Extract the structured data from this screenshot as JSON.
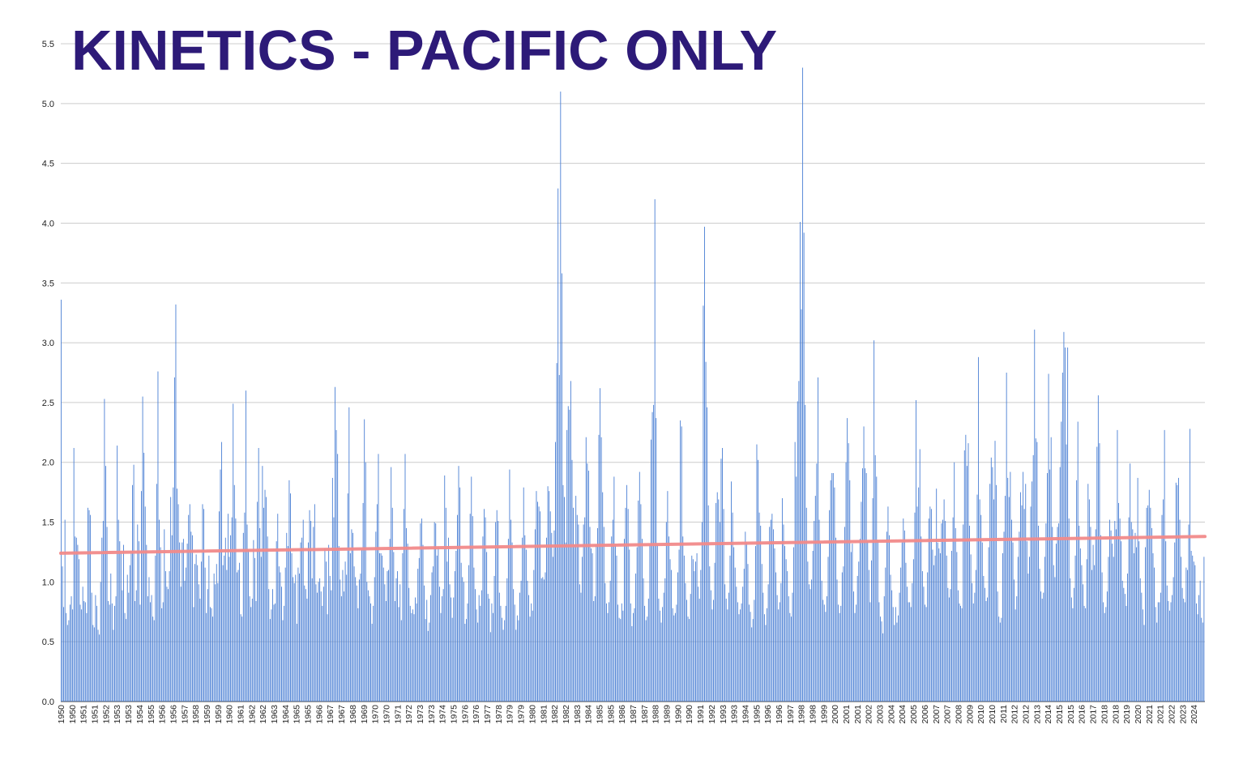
{
  "chart_data": {
    "type": "bar",
    "title": "KINETICS - PACIFIC ONLY",
    "xlabel": "",
    "ylabel": "",
    "ylim": [
      0,
      5.5
    ],
    "yticks": [
      "0.0",
      "0.5",
      "1.0",
      "1.5",
      "2.0",
      "2.5",
      "3.0",
      "3.5",
      "4.0",
      "4.5",
      "5.0",
      "5.5"
    ],
    "x_tick_labels": [
      "1950",
      "1950",
      "1951",
      "1951",
      "1952",
      "1953",
      "1953",
      "1954",
      "1955",
      "1956",
      "1956",
      "1957",
      "1958",
      "1959",
      "1959",
      "1960",
      "1961",
      "1962",
      "1962",
      "1963",
      "1964",
      "1965",
      "1965",
      "1966",
      "1967",
      "1967",
      "1968",
      "1969",
      "1970",
      "1970",
      "1971",
      "1972",
      "1973",
      "1973",
      "1974",
      "1975",
      "1976",
      "1976",
      "1977",
      "1978",
      "1979",
      "1979",
      "1980",
      "1981",
      "1982",
      "1982",
      "1983",
      "1984",
      "1985",
      "1985",
      "1986",
      "1987",
      "1987",
      "1988",
      "1989",
      "1990",
      "1990",
      "1991",
      "1992",
      "1993",
      "1993",
      "1994",
      "1995",
      "1996",
      "1996",
      "1997",
      "1998",
      "1998",
      "1999",
      "2000",
      "2001",
      "2001",
      "2002",
      "2003",
      "2004",
      "2004",
      "2005",
      "2006",
      "2007",
      "2007",
      "2008",
      "2009",
      "2010",
      "2010",
      "2011",
      "2012",
      "2012",
      "2013",
      "2014",
      "2015",
      "2015",
      "2016",
      "2017",
      "2018",
      "2018",
      "2019",
      "2020",
      "2021",
      "2021",
      "2022",
      "2023",
      "2024"
    ],
    "x_start": "1950-01",
    "x_end": "2024-09",
    "series": [
      {
        "color": "#4a7fd4",
        "values": [
          3.36,
          1.13,
          0.79,
          1.52,
          0.74,
          0.64,
          0.68,
          0.81,
          0.88,
          0.77,
          2.12,
          1.38,
          1.37,
          1.31,
          1.19,
          0.81,
          0.77,
          0.96,
          0.84,
          0.83,
          0.74,
          1.62,
          1.6,
          1.56,
          0.91,
          0.64,
          0.62,
          0.89,
          0.8,
          0.6,
          0.56,
          1.0,
          1.37,
          1.51,
          2.53,
          1.97,
          1.46,
          0.84,
          0.81,
          1.07,
          0.82,
          0.6,
          0.8,
          0.88,
          2.14,
          1.52,
          1.34,
          1.24,
          0.93,
          1.31,
          0.74,
          0.69,
          1.06,
          0.91,
          1.14,
          1.26,
          1.81,
          1.98,
          0.84,
          0.93,
          1.48,
          1.34,
          0.81,
          1.76,
          2.55,
          2.08,
          1.63,
          1.31,
          0.88,
          1.04,
          0.83,
          0.89,
          0.71,
          0.68,
          1.22,
          1.82,
          2.76,
          1.52,
          1.29,
          0.78,
          0.83,
          1.44,
          1.09,
          0.96,
          0.94,
          1.09,
          1.71,
          1.39,
          1.79,
          2.71,
          3.32,
          1.78,
          1.65,
          1.33,
          0.96,
          1.33,
          1.36,
          1.01,
          1.12,
          1.32,
          1.56,
          1.65,
          1.42,
          1.39,
          0.79,
          1.15,
          1.23,
          1.14,
          0.98,
          0.86,
          1.17,
          1.65,
          1.61,
          1.12,
          0.74,
          0.94,
          1.22,
          0.79,
          0.78,
          0.71,
          1.07,
          0.98,
          1.15,
          0.99,
          1.59,
          1.94,
          2.17,
          1.14,
          1.22,
          1.37,
          1.1,
          1.57,
          1.21,
          1.39,
          1.54,
          2.49,
          1.81,
          1.53,
          1.08,
          1.1,
          1.16,
          0.73,
          0.71,
          1.41,
          1.58,
          2.6,
          1.48,
          1.27,
          0.88,
          0.79,
          0.86,
          1.35,
          1.2,
          0.84,
          1.67,
          2.12,
          1.45,
          1.21,
          1.97,
          1.62,
          1.77,
          1.71,
          1.38,
          0.94,
          0.69,
          0.77,
          0.94,
          0.81,
          0.82,
          1.34,
          1.57,
          1.13,
          1.08,
          0.96,
          0.68,
          0.8,
          1.12,
          1.41,
          1.3,
          1.85,
          1.74,
          1.24,
          1.04,
          0.99,
          1.06,
          0.65,
          1.12,
          1.07,
          1.33,
          1.37,
          1.52,
          0.97,
          0.94,
          0.86,
          1.33,
          1.6,
          1.51,
          1.03,
          1.46,
          1.65,
          0.98,
          0.91,
          1.0,
          1.03,
          0.92,
          0.8,
          0.96,
          1.28,
          1.17,
          0.73,
          1.31,
          1.05,
          0.93,
          1.87,
          1.54,
          2.63,
          2.27,
          2.07,
          1.3,
          1.02,
          0.88,
          1.1,
          0.92,
          1.17,
          1.06,
          1.74,
          2.46,
          1.24,
          1.44,
          1.41,
          1.13,
          1.04,
          0.97,
          0.78,
          1.02,
          1.07,
          1.27,
          1.66,
          2.36,
          2.0,
          1.0,
          0.93,
          0.88,
          0.82,
          0.65,
          0.8,
          1.04,
          1.42,
          1.65,
          2.07,
          1.24,
          1.24,
          1.22,
          1.12,
          0.98,
          0.84,
          1.09,
          1.1,
          1.36,
          1.96,
          1.62,
          1.25,
          0.84,
          1.03,
          1.09,
          0.79,
          0.98,
          0.68,
          1.24,
          1.61,
          2.07,
          1.45,
          1.32,
          0.95,
          0.8,
          0.74,
          0.77,
          0.73,
          0.87,
          0.82,
          1.11,
          1.2,
          1.49,
          1.53,
          1.31,
          0.97,
          0.69,
          0.85,
          0.59,
          0.66,
          0.89,
          1.08,
          1.13,
          1.5,
          1.49,
          1.22,
          1.29,
          0.96,
          0.74,
          0.88,
          0.94,
          1.89,
          1.62,
          1.17,
          1.37,
          0.98,
          0.87,
          0.7,
          0.87,
          1.09,
          1.26,
          1.56,
          1.97,
          1.79,
          1.16,
          1.04,
          1.0,
          0.65,
          0.69,
          0.82,
          1.14,
          1.57,
          1.88,
          1.55,
          1.12,
          0.94,
          0.77,
          0.66,
          0.89,
          0.8,
          0.93,
          1.38,
          1.61,
          1.54,
          1.25,
          0.9,
          0.86,
          0.58,
          0.82,
          0.74,
          1.05,
          1.5,
          1.6,
          1.51,
          0.91,
          0.8,
          0.7,
          0.6,
          0.68,
          0.8,
          1.03,
          1.36,
          1.94,
          1.52,
          1.33,
          0.94,
          0.81,
          0.6,
          0.72,
          0.68,
          0.91,
          1.01,
          1.37,
          1.79,
          1.39,
          1.27,
          1.01,
          0.89,
          0.71,
          0.82,
          0.76,
          1.1,
          1.44,
          1.76,
          1.67,
          1.63,
          1.59,
          1.03,
          1.04,
          1.02,
          1.08,
          1.37,
          1.8,
          1.76,
          1.59,
          1.41,
          1.21,
          1.43,
          2.17,
          2.83,
          4.29,
          2.73,
          5.1,
          3.58,
          1.81,
          1.71,
          1.33,
          2.27,
          2.47,
          2.44,
          2.68,
          2.02,
          1.62,
          1.31,
          1.72,
          1.56,
          1.48,
          0.98,
          0.91,
          1.21,
          1.48,
          1.54,
          2.21,
          1.99,
          1.93,
          1.46,
          1.28,
          1.24,
          0.84,
          0.88,
          1.31,
          1.45,
          2.23,
          2.62,
          2.21,
          1.75,
          1.46,
          0.99,
          0.82,
          0.74,
          0.83,
          1.01,
          1.38,
          1.52,
          1.88,
          1.31,
          1.22,
          0.81,
          0.7,
          0.69,
          0.82,
          0.76,
          1.36,
          1.62,
          1.81,
          1.61,
          1.27,
          0.82,
          0.63,
          0.74,
          0.78,
          1.07,
          1.29,
          1.68,
          1.92,
          1.65,
          1.36,
          1.03,
          0.8,
          0.68,
          0.71,
          0.86,
          1.31,
          2.19,
          2.42,
          2.48,
          4.2,
          2.37,
          1.31,
          0.86,
          0.76,
          0.66,
          0.79,
          0.91,
          1.03,
          1.5,
          1.76,
          1.38,
          1.19,
          1.1,
          0.78,
          0.72,
          0.74,
          0.81,
          1.08,
          1.27,
          2.35,
          2.3,
          1.38,
          1.22,
          0.99,
          0.85,
          0.71,
          0.69,
          0.9,
          1.22,
          1.19,
          1.09,
          1.17,
          1.24,
          0.96,
          0.86,
          1.1,
          1.5,
          3.31,
          3.97,
          2.84,
          2.46,
          1.64,
          1.13,
          0.93,
          0.77,
          0.85,
          1.16,
          1.66,
          1.75,
          1.69,
          1.5,
          2.03,
          2.12,
          1.61,
          0.98,
          0.86,
          0.77,
          0.91,
          1.22,
          1.84,
          1.58,
          1.29,
          1.12,
          0.96,
          0.83,
          0.73,
          0.77,
          0.82,
          0.96,
          1.11,
          1.42,
          1.33,
          1.15,
          0.81,
          0.75,
          0.62,
          0.69,
          0.85,
          1.3,
          2.15,
          2.02,
          1.58,
          1.47,
          1.15,
          0.91,
          0.73,
          0.64,
          0.78,
          0.98,
          1.46,
          1.52,
          1.57,
          1.44,
          1.28,
          1.08,
          0.89,
          0.77,
          0.83,
          0.99,
          1.7,
          1.48,
          1.3,
          1.19,
          1.09,
          0.88,
          0.74,
          0.71,
          0.91,
          1.29,
          2.17,
          1.88,
          2.51,
          2.68,
          4.01,
          3.28,
          5.3,
          3.92,
          2.48,
          1.62,
          1.17,
          0.98,
          0.94,
          1.02,
          1.26,
          1.51,
          1.72,
          1.99,
          2.71,
          1.52,
          1.33,
          1.01,
          0.85,
          0.81,
          0.75,
          0.88,
          1.21,
          1.6,
          1.85,
          1.91,
          1.91,
          1.79,
          1.37,
          1.02,
          0.81,
          0.74,
          0.8,
          1.08,
          1.13,
          1.46,
          2.0,
          2.37,
          2.16,
          1.85,
          1.25,
          1.32,
          0.92,
          0.74,
          0.81,
          1.05,
          1.17,
          1.36,
          1.67,
          1.95,
          2.3,
          1.95,
          1.91,
          1.34,
          1.1,
          0.83,
          1.18,
          1.7,
          3.02,
          2.06,
          1.88,
          1.35,
          0.83,
          0.71,
          0.67,
          0.57,
          0.88,
          1.12,
          1.42,
          1.63,
          1.39,
          1.06,
          0.93,
          0.79,
          0.64,
          0.79,
          0.66,
          0.72,
          0.91,
          1.12,
          1.33,
          1.53,
          1.43,
          1.16,
          0.96,
          0.83,
          0.83,
          0.79,
          0.99,
          1.19,
          1.58,
          2.52,
          1.63,
          1.79,
          2.11,
          1.38,
          1.09,
          0.96,
          0.81,
          0.79,
          1.08,
          1.53,
          1.63,
          1.61,
          1.27,
          1.14,
          1.22,
          1.78,
          1.33,
          1.28,
          1.24,
          1.49,
          1.52,
          1.69,
          1.51,
          1.22,
          0.95,
          0.87,
          0.94,
          1.26,
          1.54,
          2.0,
          1.45,
          1.25,
          0.93,
          0.82,
          0.8,
          0.78,
          1.48,
          2.1,
          2.23,
          1.97,
          2.16,
          1.47,
          1.23,
          0.99,
          0.82,
          0.91,
          1.1,
          1.73,
          2.88,
          1.69,
          1.56,
          1.33,
          1.05,
          0.95,
          0.84,
          0.87,
          1.29,
          1.82,
          2.04,
          1.96,
          1.69,
          2.18,
          1.81,
          0.92,
          0.71,
          0.66,
          0.7,
          1.24,
          1.42,
          1.72,
          2.75,
          1.87,
          1.71,
          1.92,
          1.52,
          1.33,
          1.02,
          0.77,
          0.88,
          1.21,
          1.42,
          1.75,
          1.64,
          1.92,
          1.61,
          1.82,
          1.34,
          1.07,
          1.21,
          1.63,
          1.84,
          2.06,
          3.11,
          2.2,
          2.17,
          1.47,
          1.11,
          0.92,
          0.86,
          0.91,
          1.21,
          1.49,
          1.91,
          2.74,
          1.94,
          2.21,
          1.46,
          1.14,
          1.04,
          1.32,
          1.46,
          1.49,
          1.96,
          2.34,
          2.75,
          3.09,
          2.96,
          2.15,
          2.96,
          1.53,
          1.03,
          0.87,
          0.78,
          0.95,
          1.22,
          1.85,
          2.34,
          1.47,
          1.28,
          1.14,
          0.98,
          0.8,
          0.78,
          1.19,
          1.82,
          1.69,
          1.46,
          1.1,
          1.31,
          1.14,
          1.44,
          2.13,
          2.56,
          2.16,
          1.39,
          1.08,
          0.83,
          0.74,
          0.79,
          0.92,
          1.21,
          1.52,
          1.43,
          1.32,
          1.21,
          1.51,
          1.44,
          2.27,
          1.66,
          1.53,
          1.34,
          1.01,
          0.95,
          0.9,
          0.8,
          1.07,
          1.54,
          1.99,
          1.5,
          1.44,
          1.24,
          1.41,
          1.29,
          1.87,
          1.34,
          1.03,
          0.91,
          0.77,
          0.64,
          1.29,
          1.62,
          1.64,
          1.77,
          1.62,
          1.45,
          1.24,
          1.12,
          0.79,
          0.66,
          0.83,
          0.83,
          0.91,
          1.56,
          1.69,
          2.27,
          1.34,
          0.97,
          0.84,
          0.76,
          0.83,
          0.89,
          1.04,
          1.33,
          1.83,
          1.81,
          1.87,
          1.52,
          1.21,
          0.95,
          0.86,
          0.83,
          1.12,
          1.1,
          1.48,
          2.28,
          1.26,
          1.22,
          1.17,
          1.14,
          0.82,
          0.73,
          0.89,
          1.01,
          0.7,
          0.66,
          1.21
        ]
      },
      {
        "type": "line",
        "color": "#f28b8b",
        "values": [
          1.24,
          1.38
        ]
      }
    ]
  }
}
